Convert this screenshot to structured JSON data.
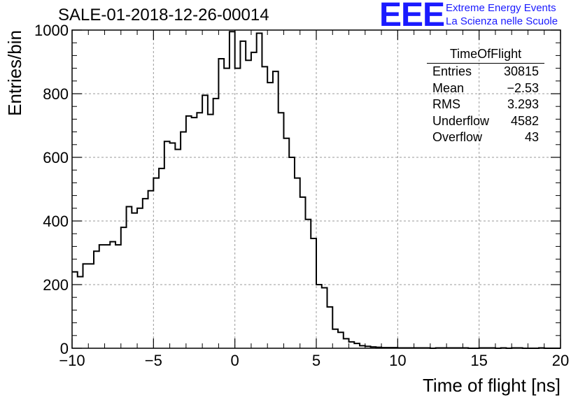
{
  "run_title": "SALE-01-2018-12-26-00014",
  "logo": {
    "mark": "EEE",
    "line1": "Extreme Energy Events",
    "line2": "La Scienza nelle Scuole",
    "color": "#1a1aff"
  },
  "stats_box": {
    "title": "TimeOfFlight",
    "rows": [
      {
        "label": "Entries",
        "value": "30815"
      },
      {
        "label": "Mean",
        "value": "−2.53"
      },
      {
        "label": "RMS",
        "value": "3.293"
      },
      {
        "label": "Underflow",
        "value": "4582"
      },
      {
        "label": "Overflow",
        "value": "43"
      }
    ]
  },
  "chart_data": {
    "type": "histogram",
    "xlabel": "Time of flight [ns]",
    "ylabel": "Entries/bin",
    "xlim": [
      -10,
      20
    ],
    "ylim": [
      0,
      1000
    ],
    "grid": true,
    "xticks": [
      -10,
      -5,
      0,
      5,
      10,
      15,
      20
    ],
    "xtick_labels": [
      "−10",
      "−5",
      "0",
      "5",
      "10",
      "15",
      "20"
    ],
    "yticks": [
      0,
      200,
      400,
      600,
      800,
      1000
    ],
    "ytick_labels": [
      "0",
      "200",
      "400",
      "600",
      "800",
      "1000"
    ],
    "bin_width": 0.33333,
    "bin_edges_start": -10,
    "values": [
      240,
      225,
      265,
      265,
      305,
      325,
      325,
      335,
      325,
      380,
      445,
      425,
      440,
      470,
      495,
      535,
      565,
      650,
      645,
      625,
      680,
      730,
      725,
      740,
      795,
      735,
      785,
      910,
      880,
      995,
      880,
      965,
      905,
      930,
      990,
      885,
      835,
      870,
      740,
      660,
      600,
      535,
      475,
      405,
      345,
      200,
      190,
      130,
      60,
      50,
      30,
      20,
      15,
      8,
      6,
      4,
      3,
      2,
      2,
      2,
      1,
      1,
      1,
      1,
      1,
      1,
      0,
      1,
      1,
      1,
      1,
      1,
      1,
      0,
      0,
      1,
      1,
      1,
      0,
      1,
      0,
      1,
      1,
      0,
      0,
      0,
      1,
      0,
      0,
      0
    ]
  }
}
